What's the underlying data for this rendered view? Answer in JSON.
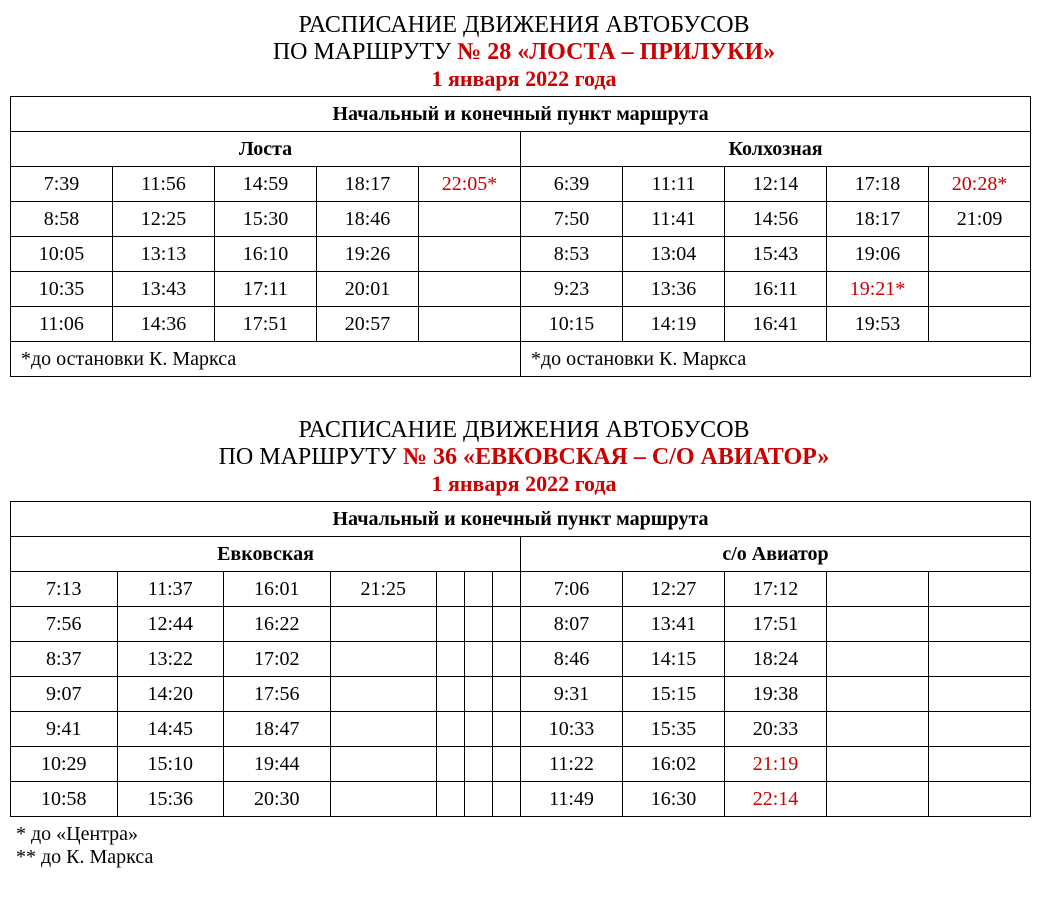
{
  "colors": {
    "accent": "#cc0000",
    "text": "#000000",
    "bg": "#ffffff",
    "border": "#000000"
  },
  "fonts": {
    "family": "Times New Roman",
    "title_size": 24,
    "cell_size": 20
  },
  "blocks": [
    {
      "title1": "РАСПИСАНИЕ ДВИЖЕНИЯ АВТОБУСОВ",
      "title2_prefix": "ПО МАРШРУТУ ",
      "route": "№ 28 «ЛОСТА – ПРИЛУКИ»",
      "date": "1 января 2022 года",
      "header": "Начальный и конечный пункт маршрута",
      "left_name": "Лоста",
      "right_name": "Колхозная",
      "left_cols": 5,
      "right_cols": 5,
      "rows": [
        [
          {
            "t": "7:39"
          },
          {
            "t": "11:56"
          },
          {
            "t": "14:59"
          },
          {
            "t": "18:17"
          },
          {
            "t": "22:05*",
            "red": true
          },
          {
            "t": "6:39"
          },
          {
            "t": "11:11"
          },
          {
            "t": "12:14"
          },
          {
            "t": "17:18"
          },
          {
            "t": "20:28*",
            "red": true
          }
        ],
        [
          {
            "t": "8:58"
          },
          {
            "t": "12:25"
          },
          {
            "t": "15:30"
          },
          {
            "t": "18:46"
          },
          {
            "t": ""
          },
          {
            "t": "7:50"
          },
          {
            "t": "11:41"
          },
          {
            "t": "14:56"
          },
          {
            "t": "18:17"
          },
          {
            "t": "21:09"
          }
        ],
        [
          {
            "t": "10:05"
          },
          {
            "t": "13:13"
          },
          {
            "t": "16:10"
          },
          {
            "t": "19:26"
          },
          {
            "t": ""
          },
          {
            "t": "8:53"
          },
          {
            "t": "13:04"
          },
          {
            "t": "15:43"
          },
          {
            "t": "19:06"
          },
          {
            "t": ""
          }
        ],
        [
          {
            "t": "10:35"
          },
          {
            "t": "13:43"
          },
          {
            "t": "17:11"
          },
          {
            "t": "20:01"
          },
          {
            "t": ""
          },
          {
            "t": "9:23"
          },
          {
            "t": "13:36"
          },
          {
            "t": "16:11"
          },
          {
            "t": "19:21*",
            "red": true
          },
          {
            "t": ""
          }
        ],
        [
          {
            "t": "11:06"
          },
          {
            "t": "14:36"
          },
          {
            "t": "17:51"
          },
          {
            "t": "20:57"
          },
          {
            "t": ""
          },
          {
            "t": "10:15"
          },
          {
            "t": "14:19"
          },
          {
            "t": "16:41"
          },
          {
            "t": "19:53"
          },
          {
            "t": ""
          }
        ]
      ],
      "footnote_left": "*до остановки К. Маркса",
      "footnote_right": "*до остановки К. Маркса",
      "footnotes_below": []
    },
    {
      "title1": "РАСПИСАНИЕ ДВИЖЕНИЯ АВТОБУСОВ",
      "title2_prefix": "ПО МАРШРУТУ ",
      "route": "№ 36 «ЕВКОВСКАЯ – С/О АВИАТОР»",
      "date": "1 января 2022 года",
      "header": "Начальный и конечный пункт маршрута",
      "left_name": "Евковская",
      "right_name": "с/о Авиатор",
      "left_cols": 7,
      "right_cols": 5,
      "narrow_cols_left": [
        4,
        5,
        6
      ],
      "rows": [
        [
          {
            "t": "7:13"
          },
          {
            "t": "11:37"
          },
          {
            "t": "16:01"
          },
          {
            "t": "21:25"
          },
          {
            "t": ""
          },
          {
            "t": ""
          },
          {
            "t": ""
          },
          {
            "t": "7:06"
          },
          {
            "t": "12:27"
          },
          {
            "t": "17:12"
          },
          {
            "t": ""
          },
          {
            "t": ""
          }
        ],
        [
          {
            "t": "7:56"
          },
          {
            "t": "12:44"
          },
          {
            "t": "16:22"
          },
          {
            "t": ""
          },
          {
            "t": ""
          },
          {
            "t": ""
          },
          {
            "t": ""
          },
          {
            "t": "8:07"
          },
          {
            "t": "13:41"
          },
          {
            "t": "17:51"
          },
          {
            "t": ""
          },
          {
            "t": ""
          }
        ],
        [
          {
            "t": "8:37"
          },
          {
            "t": "13:22"
          },
          {
            "t": "17:02"
          },
          {
            "t": ""
          },
          {
            "t": ""
          },
          {
            "t": ""
          },
          {
            "t": ""
          },
          {
            "t": "8:46"
          },
          {
            "t": "14:15"
          },
          {
            "t": "18:24"
          },
          {
            "t": ""
          },
          {
            "t": ""
          }
        ],
        [
          {
            "t": "9:07"
          },
          {
            "t": "14:20"
          },
          {
            "t": "17:56"
          },
          {
            "t": ""
          },
          {
            "t": ""
          },
          {
            "t": ""
          },
          {
            "t": ""
          },
          {
            "t": "9:31"
          },
          {
            "t": "15:15"
          },
          {
            "t": "19:38"
          },
          {
            "t": ""
          },
          {
            "t": ""
          }
        ],
        [
          {
            "t": "9:41"
          },
          {
            "t": "14:45"
          },
          {
            "t": "18:47"
          },
          {
            "t": ""
          },
          {
            "t": ""
          },
          {
            "t": ""
          },
          {
            "t": ""
          },
          {
            "t": "10:33"
          },
          {
            "t": "15:35"
          },
          {
            "t": "20:33"
          },
          {
            "t": ""
          },
          {
            "t": ""
          }
        ],
        [
          {
            "t": "10:29"
          },
          {
            "t": "15:10"
          },
          {
            "t": "19:44"
          },
          {
            "t": ""
          },
          {
            "t": ""
          },
          {
            "t": ""
          },
          {
            "t": ""
          },
          {
            "t": "11:22"
          },
          {
            "t": "16:02"
          },
          {
            "t": "21:19",
            "red": true
          },
          {
            "t": ""
          },
          {
            "t": ""
          }
        ],
        [
          {
            "t": "10:58"
          },
          {
            "t": "15:36"
          },
          {
            "t": "20:30"
          },
          {
            "t": ""
          },
          {
            "t": ""
          },
          {
            "t": ""
          },
          {
            "t": ""
          },
          {
            "t": "11:49"
          },
          {
            "t": "16:30"
          },
          {
            "t": "22:14",
            "red": true
          },
          {
            "t": ""
          },
          {
            "t": ""
          }
        ]
      ],
      "footnote_left": null,
      "footnote_right": null,
      "footnotes_below": [
        "* до «Центра»",
        "** до К. Маркса"
      ]
    }
  ]
}
